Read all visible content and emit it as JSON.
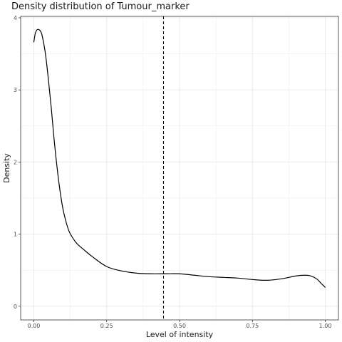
{
  "chart_data": {
    "type": "line",
    "title": "Density distribution of Tumour_marker",
    "xlabel": "Level of intensity",
    "ylabel": "Density",
    "xlim": [
      -0.045,
      1.045
    ],
    "ylim": [
      -0.19,
      4.02
    ],
    "x_ticks": [
      0.0,
      0.25,
      0.5,
      0.75,
      1.0
    ],
    "x_tick_labels": [
      "0.00",
      "0.25",
      "0.50",
      "0.75",
      "1.00"
    ],
    "y_ticks": [
      0,
      1,
      2,
      3,
      4
    ],
    "y_tick_labels": [
      "0",
      "1",
      "2",
      "3",
      "4"
    ],
    "grid": true,
    "legend": "none",
    "reference_line": {
      "x": 0.445,
      "style": "dashed"
    },
    "series": [
      {
        "x": [
          0.0,
          0.005,
          0.01,
          0.015,
          0.02,
          0.025,
          0.03,
          0.04,
          0.05,
          0.06,
          0.07,
          0.08,
          0.09,
          0.1,
          0.11,
          0.12,
          0.13,
          0.14,
          0.15,
          0.17,
          0.2,
          0.25,
          0.3,
          0.35,
          0.4,
          0.45,
          0.5,
          0.55,
          0.6,
          0.65,
          0.7,
          0.75,
          0.8,
          0.85,
          0.9,
          0.93,
          0.95,
          0.97,
          0.985,
          1.0
        ],
        "y": [
          3.66,
          3.78,
          3.83,
          3.84,
          3.83,
          3.8,
          3.73,
          3.5,
          3.15,
          2.75,
          2.3,
          1.92,
          1.6,
          1.35,
          1.18,
          1.05,
          0.97,
          0.91,
          0.86,
          0.79,
          0.69,
          0.55,
          0.49,
          0.46,
          0.45,
          0.45,
          0.45,
          0.43,
          0.41,
          0.4,
          0.39,
          0.37,
          0.36,
          0.38,
          0.42,
          0.43,
          0.42,
          0.38,
          0.32,
          0.26
        ]
      }
    ]
  }
}
